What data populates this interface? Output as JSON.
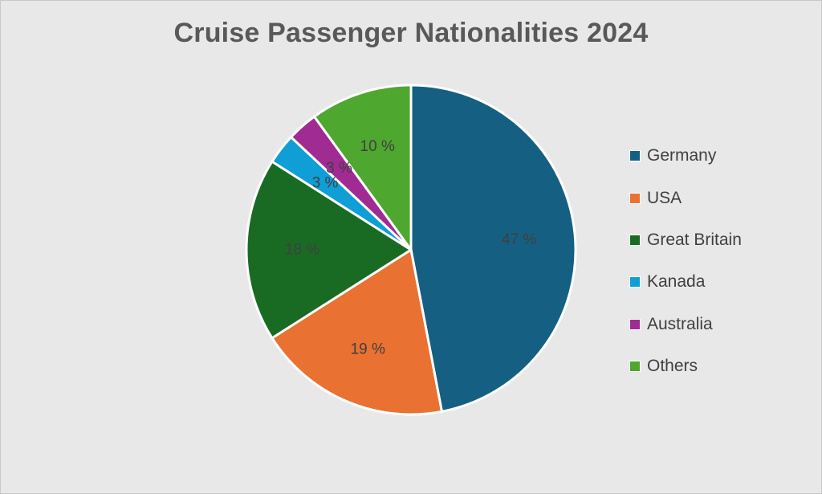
{
  "chart_data": {
    "type": "pie",
    "title": "Cruise Passenger Nationalities 2024",
    "slices": [
      {
        "label": "Germany",
        "value": 47,
        "data_label": "47 %",
        "color": "#156082"
      },
      {
        "label": "USA",
        "value": 19,
        "data_label": "19 %",
        "color": "#e97132"
      },
      {
        "label": "Great Britain",
        "value": 18,
        "data_label": "18 %",
        "color": "#196b24"
      },
      {
        "label": "Kanada",
        "value": 3,
        "data_label": "3 %",
        "color": "#0f9ed5"
      },
      {
        "label": "Australia",
        "value": 3,
        "data_label": "3 %",
        "color": "#a02b93"
      },
      {
        "label": "Others",
        "value": 10,
        "data_label": "10 %",
        "color": "#4ea72e"
      }
    ],
    "legend_position": "right"
  }
}
